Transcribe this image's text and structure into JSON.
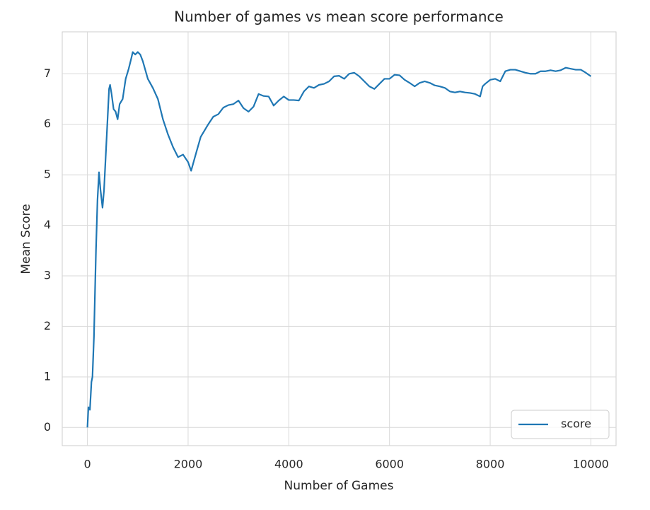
{
  "chart_data": {
    "type": "line",
    "title": "Number of games vs mean score performance",
    "x_label": "Number of Games",
    "y_label": "Mean Score",
    "xlim": [
      -500,
      10500
    ],
    "ylim": [
      -0.36,
      7.83
    ],
    "xticks": [
      0,
      2000,
      4000,
      6000,
      8000,
      10000
    ],
    "yticks": [
      0,
      1,
      2,
      3,
      4,
      5,
      6,
      7
    ],
    "grid": true,
    "legend": "lower right",
    "x": [
      0,
      20,
      50,
      80,
      100,
      130,
      170,
      200,
      230,
      260,
      300,
      330,
      360,
      400,
      430,
      450,
      480,
      520,
      560,
      600,
      640,
      700,
      760,
      820,
      870,
      900,
      950,
      1000,
      1050,
      1100,
      1200,
      1300,
      1400,
      1500,
      1600,
      1700,
      1800,
      1900,
      2000,
      2060,
      2150,
      2250,
      2400,
      2500,
      2600,
      2700,
      2800,
      2900,
      3000,
      3100,
      3200,
      3300,
      3400,
      3500,
      3600,
      3700,
      3800,
      3900,
      4000,
      4100,
      4200,
      4300,
      4400,
      4500,
      4600,
      4700,
      4800,
      4900,
      5000,
      5100,
      5200,
      5300,
      5400,
      5500,
      5600,
      5700,
      5800,
      5900,
      6000,
      6100,
      6200,
      6300,
      6400,
      6500,
      6600,
      6700,
      6800,
      6900,
      7000,
      7100,
      7200,
      7300,
      7400,
      7500,
      7600,
      7700,
      7800,
      7850,
      7900,
      8000,
      8100,
      8200,
      8300,
      8400,
      8500,
      8600,
      8700,
      8800,
      8900,
      9000,
      9100,
      9200,
      9300,
      9400,
      9500,
      9600,
      9700,
      9800,
      9900,
      10000
    ],
    "series": [
      {
        "name": "score",
        "color": "#1f77b4",
        "values": [
          0,
          0.4,
          0.35,
          0.9,
          1.0,
          1.8,
          3.5,
          4.5,
          5.05,
          4.7,
          4.35,
          4.7,
          5.3,
          6.1,
          6.7,
          6.78,
          6.6,
          6.3,
          6.25,
          6.1,
          6.4,
          6.5,
          6.9,
          7.1,
          7.3,
          7.43,
          7.38,
          7.43,
          7.38,
          7.25,
          6.9,
          6.72,
          6.5,
          6.1,
          5.8,
          5.55,
          5.35,
          5.4,
          5.25,
          5.08,
          5.4,
          5.75,
          6.0,
          6.15,
          6.2,
          6.33,
          6.38,
          6.4,
          6.47,
          6.32,
          6.25,
          6.35,
          6.6,
          6.56,
          6.55,
          6.37,
          6.47,
          6.55,
          6.48,
          6.48,
          6.47,
          6.65,
          6.75,
          6.72,
          6.78,
          6.8,
          6.85,
          6.95,
          6.96,
          6.9,
          7.0,
          7.02,
          6.95,
          6.85,
          6.75,
          6.7,
          6.8,
          6.9,
          6.9,
          6.98,
          6.97,
          6.88,
          6.82,
          6.75,
          6.82,
          6.85,
          6.82,
          6.77,
          6.75,
          6.72,
          6.65,
          6.63,
          6.65,
          6.63,
          6.62,
          6.6,
          6.55,
          6.75,
          6.8,
          6.88,
          6.9,
          6.85,
          7.05,
          7.08,
          7.08,
          7.05,
          7.02,
          7.0,
          7.0,
          7.05,
          7.05,
          7.07,
          7.05,
          7.07,
          7.12,
          7.1,
          7.08,
          7.08,
          7.02,
          6.95
        ]
      }
    ]
  }
}
